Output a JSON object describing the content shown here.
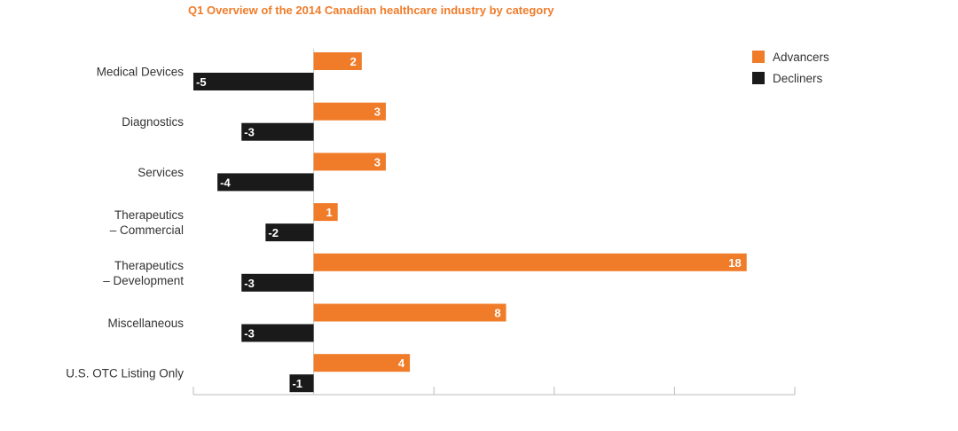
{
  "chart_data": {
    "type": "bar",
    "orientation": "horizontal",
    "title": "Q1 Overview of the 2014 Canadian healthcare industry by category",
    "categories": [
      [
        "Medical Devices"
      ],
      [
        "Diagnostics"
      ],
      [
        "Services"
      ],
      [
        "Therapeutics",
        "– Commercial"
      ],
      [
        "Therapeutics",
        "– Development"
      ],
      [
        "Miscellaneous"
      ],
      [
        "U.S. OTC Listing Only"
      ]
    ],
    "series": [
      {
        "name": "Advancers",
        "color": "#f07c2a",
        "values": [
          2,
          3,
          3,
          1,
          18,
          8,
          4
        ]
      },
      {
        "name": "Decliners",
        "color": "#1a1a1a",
        "values": [
          -5,
          -3,
          -4,
          -2,
          -3,
          -3,
          -1
        ]
      }
    ],
    "xlim": [
      -5,
      20
    ],
    "xticks": [
      -5,
      0,
      5,
      10,
      15,
      20
    ],
    "grid": false,
    "legend_position": "top-right"
  }
}
